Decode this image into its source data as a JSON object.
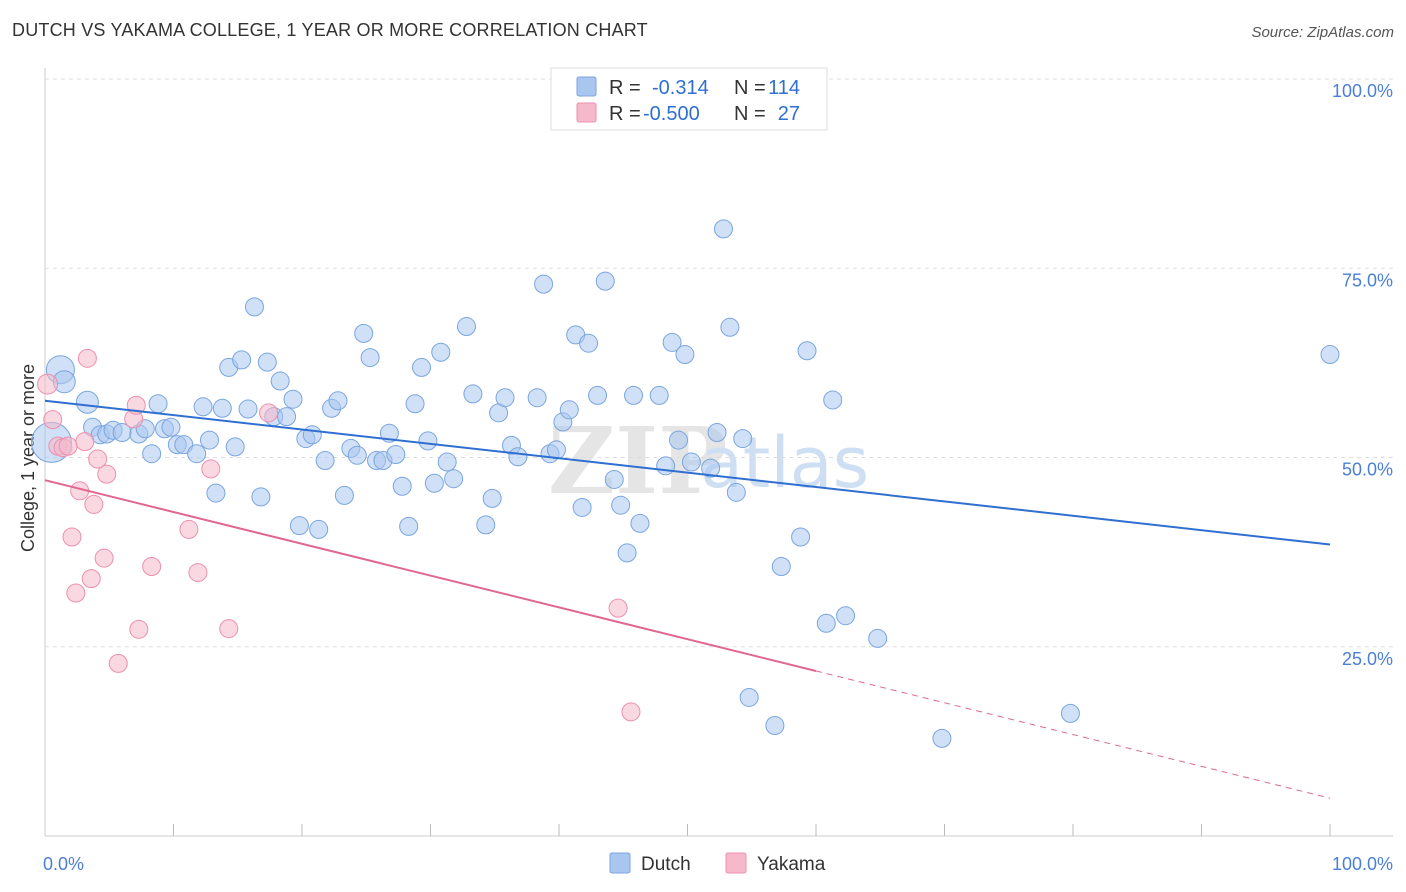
{
  "header": {
    "title": "DUTCH VS YAKAMA COLLEGE, 1 YEAR OR MORE CORRELATION CHART",
    "source": "Source: ZipAtlas.com"
  },
  "colors": {
    "dutch_fill": "#a9c6ee",
    "dutch_stroke": "#7aa6e0",
    "dutch_line": "#2f6fd1",
    "yakama_fill": "#f6b8cb",
    "yakama_stroke": "#ec90ad",
    "yakama_line": "#e0678f",
    "grid": "#dddddd",
    "axis_label": "#4a7fd6"
  },
  "legend": {
    "r_label": "R =",
    "n_label": "N =",
    "rows": [
      {
        "series": "Dutch",
        "r": "-0.314",
        "n": "114"
      },
      {
        "series": "Yakama",
        "r": "-0.500",
        "n": "27"
      }
    ]
  },
  "watermark": {
    "zip": "ZIP",
    "atlas": "atlas"
  },
  "chart_data": {
    "type": "scatter",
    "title": "DUTCH VS YAKAMA COLLEGE, 1 YEAR OR MORE CORRELATION CHART",
    "xlabel": "",
    "ylabel": "College, 1 year or more",
    "xlim": [
      0,
      100
    ],
    "ylim": [
      0,
      100
    ],
    "x_tick_labels": {
      "min": "0.0%",
      "max": "100.0%"
    },
    "y_ticks": [
      {
        "value": 25,
        "label": "25.0%"
      },
      {
        "value": 50,
        "label": "50.0%"
      },
      {
        "value": 75,
        "label": "75.0%"
      },
      {
        "value": 100,
        "label": "100.0%"
      }
    ],
    "grid": true,
    "legend_position": "top-center",
    "series": [
      {
        "name": "Dutch",
        "trend": {
          "x0": 0,
          "y0": 57.5,
          "x1": 100,
          "y1": 38.5,
          "dashed_from": null
        },
        "points": [
          [
            1.2,
            61.6,
            14
          ],
          [
            0.5,
            52,
            20
          ],
          [
            1.5,
            60,
            11
          ],
          [
            3.3,
            57.3,
            11
          ],
          [
            3.7,
            54,
            9
          ],
          [
            4.3,
            53,
            9
          ],
          [
            4.8,
            53.1,
            9
          ],
          [
            5.3,
            53.6,
            9
          ],
          [
            6,
            53.3,
            9
          ],
          [
            7.3,
            53.1,
            9
          ],
          [
            7.8,
            53.8,
            9
          ],
          [
            8.3,
            50.5,
            9
          ],
          [
            8.8,
            57.1,
            9
          ],
          [
            9.3,
            53.8,
            9
          ],
          [
            9.8,
            54,
            9
          ],
          [
            10.3,
            51.7,
            9
          ],
          [
            10.8,
            51.7,
            9
          ],
          [
            11.8,
            50.5,
            9
          ],
          [
            12.3,
            56.7,
            9
          ],
          [
            12.8,
            52.3,
            9
          ],
          [
            13.3,
            45.3,
            9
          ],
          [
            13.8,
            56.5,
            9
          ],
          [
            14.3,
            61.9,
            9
          ],
          [
            14.8,
            51.4,
            9
          ],
          [
            15.3,
            62.9,
            9
          ],
          [
            15.8,
            56.4,
            9
          ],
          [
            16.3,
            69.9,
            9
          ],
          [
            16.8,
            44.8,
            9
          ],
          [
            17.3,
            62.6,
            9
          ],
          [
            17.8,
            55.4,
            9
          ],
          [
            18.3,
            60.1,
            9
          ],
          [
            18.8,
            55.4,
            9
          ],
          [
            19.3,
            57.7,
            9
          ],
          [
            19.8,
            41,
            9
          ],
          [
            20.3,
            52.5,
            9
          ],
          [
            20.8,
            53,
            9
          ],
          [
            21.3,
            40.5,
            9
          ],
          [
            21.8,
            49.6,
            9
          ],
          [
            22.3,
            56.5,
            9
          ],
          [
            22.8,
            57.5,
            9
          ],
          [
            23.3,
            45,
            9
          ],
          [
            23.8,
            51.2,
            9
          ],
          [
            24.3,
            50.3,
            9
          ],
          [
            24.8,
            66.4,
            9
          ],
          [
            25.3,
            63.2,
            9
          ],
          [
            25.8,
            49.6,
            9
          ],
          [
            26.3,
            49.6,
            9
          ],
          [
            26.8,
            53.2,
            9
          ],
          [
            27.3,
            50.4,
            9
          ],
          [
            27.8,
            46.2,
            9
          ],
          [
            28.3,
            40.9,
            9
          ],
          [
            28.8,
            57.1,
            9
          ],
          [
            29.3,
            61.9,
            9
          ],
          [
            29.8,
            52.2,
            9
          ],
          [
            30.3,
            46.6,
            9
          ],
          [
            30.8,
            63.9,
            9
          ],
          [
            31.3,
            49.4,
            9
          ],
          [
            31.8,
            47.2,
            9
          ],
          [
            32.8,
            67.3,
            9
          ],
          [
            33.3,
            58.4,
            9
          ],
          [
            34.3,
            41.1,
            9
          ],
          [
            34.8,
            44.6,
            9
          ],
          [
            35.3,
            55.9,
            9
          ],
          [
            35.8,
            57.9,
            9
          ],
          [
            36.3,
            51.6,
            9
          ],
          [
            36.8,
            50.1,
            9
          ],
          [
            38.3,
            57.9,
            9
          ],
          [
            38.8,
            72.9,
            9
          ],
          [
            39.3,
            50.5,
            9
          ],
          [
            39.8,
            51,
            9
          ],
          [
            40.3,
            54.7,
            9
          ],
          [
            40.8,
            56.3,
            9
          ],
          [
            41.3,
            66.2,
            9
          ],
          [
            41.8,
            43.4,
            9
          ],
          [
            42.3,
            65.1,
            9
          ],
          [
            43,
            58.2,
            9
          ],
          [
            43.6,
            73.3,
            9
          ],
          [
            44.3,
            47.1,
            9
          ],
          [
            44.8,
            43.7,
            9
          ],
          [
            45.3,
            37.4,
            9
          ],
          [
            45.8,
            58.2,
            9
          ],
          [
            46.3,
            41.3,
            9
          ],
          [
            47.8,
            58.2,
            9
          ],
          [
            48.3,
            48.9,
            9
          ],
          [
            48.8,
            65.2,
            9
          ],
          [
            49.3,
            52.3,
            9
          ],
          [
            49.8,
            63.6,
            9
          ],
          [
            50.3,
            49.4,
            9
          ],
          [
            51.8,
            48.6,
            9
          ],
          [
            52.3,
            53.3,
            9
          ],
          [
            52.8,
            80.2,
            9
          ],
          [
            53.3,
            67.2,
            9
          ],
          [
            53.8,
            45.4,
            9
          ],
          [
            54.3,
            52.5,
            9
          ],
          [
            54.8,
            18.3,
            9
          ],
          [
            56.8,
            14.6,
            9
          ],
          [
            57.3,
            35.6,
            9
          ],
          [
            58.8,
            39.5,
            9
          ],
          [
            59.3,
            64.1,
            9
          ],
          [
            60.8,
            28.1,
            9
          ],
          [
            61.3,
            57.6,
            9
          ],
          [
            62.3,
            29.1,
            9
          ],
          [
            64.8,
            26.1,
            9
          ],
          [
            69.8,
            12.9,
            9
          ],
          [
            79.8,
            16.2,
            9
          ],
          [
            100,
            63.6,
            9
          ]
        ]
      },
      {
        "name": "Yakama",
        "trend": {
          "x0": 0,
          "y0": 47,
          "x1": 100,
          "y1": 5,
          "dashed_from": 60
        },
        "points": [
          [
            0.2,
            59.7,
            10
          ],
          [
            0.6,
            55,
            9
          ],
          [
            1,
            51.5,
            9
          ],
          [
            1.4,
            51.3,
            9
          ],
          [
            1.8,
            51.5,
            9
          ],
          [
            2.1,
            39.5,
            9
          ],
          [
            2.4,
            32.1,
            9
          ],
          [
            2.7,
            45.6,
            9
          ],
          [
            3.1,
            52.1,
            9
          ],
          [
            3.3,
            63.1,
            9
          ],
          [
            3.6,
            34,
            9
          ],
          [
            3.8,
            43.8,
            9
          ],
          [
            4.1,
            49.8,
            9
          ],
          [
            4.6,
            36.7,
            9
          ],
          [
            4.8,
            47.8,
            9
          ],
          [
            5.7,
            22.8,
            9
          ],
          [
            6.9,
            55.1,
            9
          ],
          [
            7.1,
            56.9,
            9
          ],
          [
            7.3,
            27.3,
            9
          ],
          [
            8.3,
            35.6,
            9
          ],
          [
            11.2,
            40.5,
            9
          ],
          [
            11.9,
            34.8,
            9
          ],
          [
            12.9,
            48.5,
            9
          ],
          [
            14.3,
            27.4,
            9
          ],
          [
            17.4,
            55.9,
            9
          ],
          [
            44.6,
            30.1,
            9
          ],
          [
            45.6,
            16.4,
            9
          ]
        ]
      }
    ]
  },
  "bottom_legend": [
    {
      "series": "Dutch",
      "label": "Dutch"
    },
    {
      "series": "Yakama",
      "label": "Yakama"
    }
  ]
}
